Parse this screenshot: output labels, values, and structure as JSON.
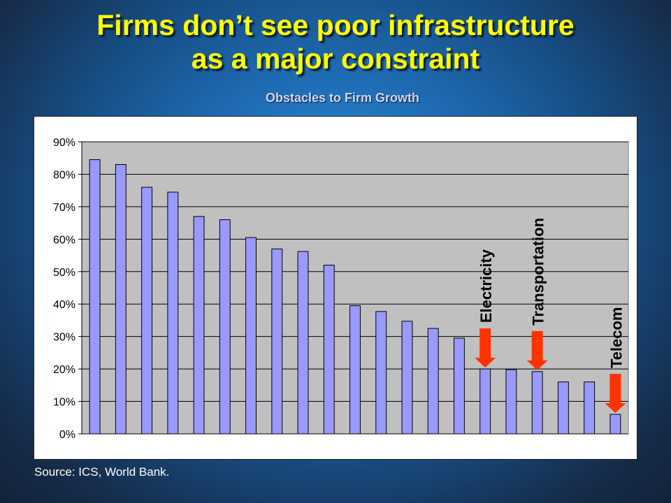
{
  "slide": {
    "title_line1": "Firms don’t see poor infrastructure",
    "title_line2": "as a major constraint",
    "subtitle": "Obstacles to Firm Growth",
    "source": "Source: ICS, World Bank."
  },
  "colors": {
    "title": "#ffff00",
    "bar_fill": "#9999ff",
    "plot_bg": "#c0c0c0",
    "arrow": "#ff3300"
  },
  "chart_data": {
    "type": "bar",
    "title": "Obstacles to Firm Growth",
    "xlabel": "",
    "ylabel": "",
    "ylim": [
      0,
      90
    ],
    "y_tick_labels": [
      "0%",
      "10%",
      "20%",
      "30%",
      "40%",
      "50%",
      "60%",
      "70%",
      "80%",
      "90%"
    ],
    "grid": true,
    "values": [
      84.5,
      83,
      76,
      74.5,
      67,
      66,
      60.5,
      57,
      56.2,
      52,
      39.5,
      37.7,
      34.7,
      32.5,
      29.5,
      20,
      19.8,
      19.2,
      16,
      16,
      6
    ],
    "annotations": [
      {
        "text": "Electricity",
        "bar_index": 15
      },
      {
        "text": "Transportation",
        "bar_index": 17
      },
      {
        "text": "Telecom",
        "bar_index": 20
      }
    ]
  }
}
